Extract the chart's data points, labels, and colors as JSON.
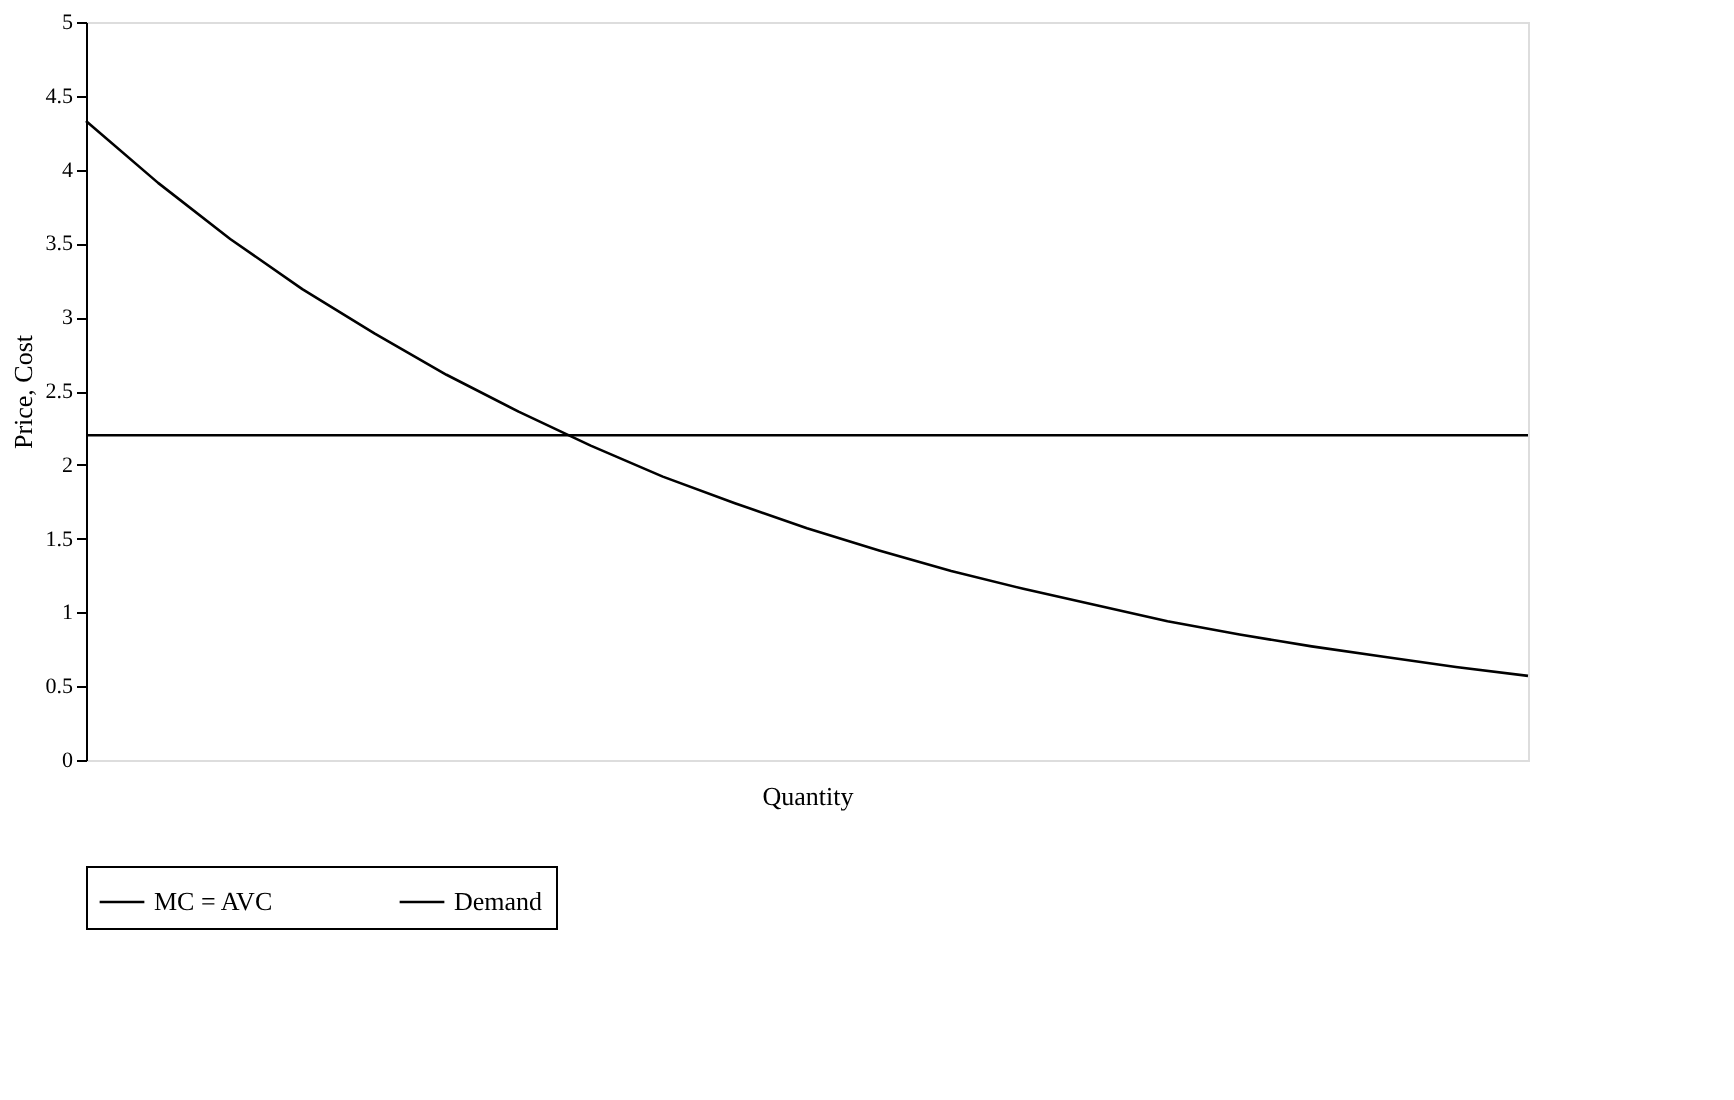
{
  "chart_data": {
    "type": "line",
    "xlabel": "Quantity",
    "ylabel": "Price, Cost",
    "categories": [
      null,
      null,
      null,
      null,
      null,
      null,
      null,
      null,
      null,
      null,
      null,
      null,
      null,
      null,
      null,
      null,
      null,
      null,
      null,
      null,
      null
    ],
    "series": [
      {
        "name": "MC = AVC",
        "color": "#000000",
        "values": [
          4.33,
          3.91,
          3.53,
          3.19,
          2.89,
          2.61,
          2.36,
          2.13,
          1.92,
          1.74,
          1.57,
          1.42,
          1.28,
          1.16,
          1.05,
          0.94,
          0.85,
          0.77,
          0.7,
          0.63,
          0.57
        ]
      },
      {
        "name": "Demand",
        "color": "#000000",
        "values": [
          2.2,
          2.2,
          2.2,
          2.2,
          2.2,
          2.2,
          2.2,
          2.2,
          2.2,
          2.2,
          2.2,
          2.2,
          2.2,
          2.2,
          2.2,
          2.2,
          2.2,
          2.2,
          2.2,
          2.2,
          2.2
        ]
      }
    ],
    "ylim": [
      0,
      5
    ],
    "yticks": [
      0,
      0.5,
      1,
      1.5,
      2,
      2.5,
      3,
      3.5,
      4,
      4.5,
      5
    ],
    "grid": false,
    "legend": "bottom",
    "tick_labels": "y",
    "marker": "none",
    "line_style": "solid"
  }
}
